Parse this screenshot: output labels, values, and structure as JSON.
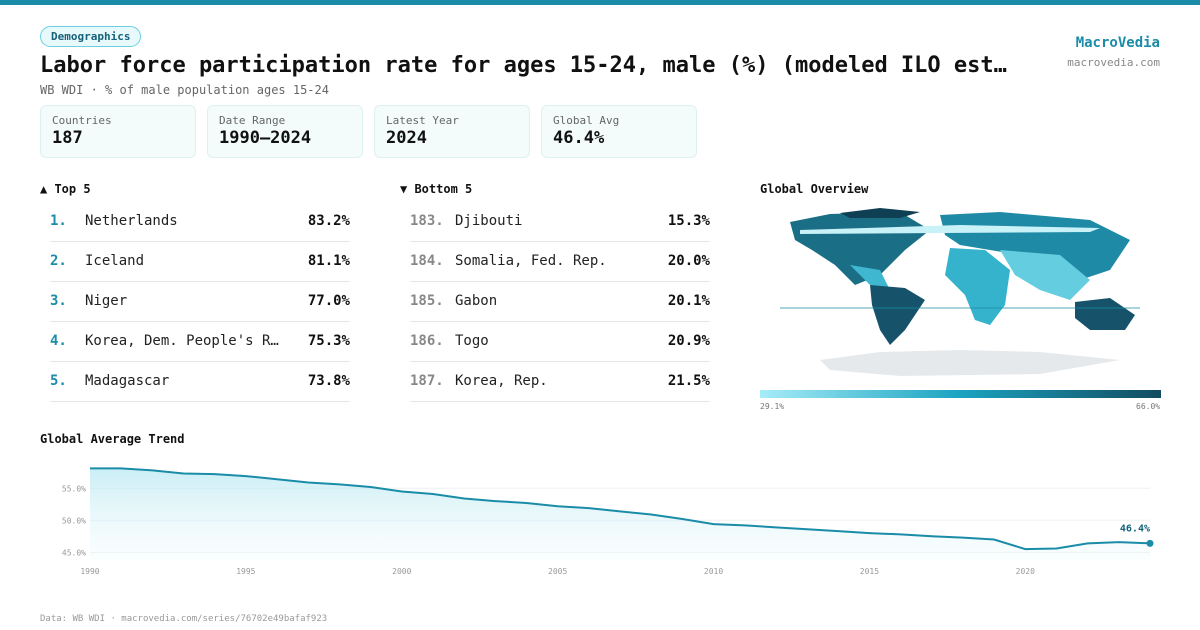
{
  "header": {
    "tag": "Demographics",
    "title": "Labor force participation rate for ages 15-24, male (%) (modeled ILO est…",
    "subtitle": "WB WDI · % of male population ages 15-24",
    "brand": "MacroVedia",
    "site": "macrovedia.com"
  },
  "stats": [
    {
      "label": "Countries",
      "value": "187"
    },
    {
      "label": "Date Range",
      "value": "1990–2024"
    },
    {
      "label": "Latest Year",
      "value": "2024"
    },
    {
      "label": "Global Avg",
      "value": "46.4%"
    }
  ],
  "top": {
    "title": "▲ Top 5",
    "rows": [
      {
        "rank": "1.",
        "name": "Netherlands",
        "value": "83.2%"
      },
      {
        "rank": "2.",
        "name": "Iceland",
        "value": "81.1%"
      },
      {
        "rank": "3.",
        "name": "Niger",
        "value": "77.0%"
      },
      {
        "rank": "4.",
        "name": "Korea, Dem. People's R…",
        "value": "75.3%"
      },
      {
        "rank": "5.",
        "name": "Madagascar",
        "value": "73.8%"
      }
    ]
  },
  "bottom": {
    "title": "▼ Bottom 5",
    "rows": [
      {
        "rank": "183.",
        "name": "Djibouti",
        "value": "15.3%"
      },
      {
        "rank": "184.",
        "name": "Somalia, Fed. Rep.",
        "value": "20.0%"
      },
      {
        "rank": "185.",
        "name": "Gabon",
        "value": "20.1%"
      },
      {
        "rank": "186.",
        "name": "Togo",
        "value": "20.9%"
      },
      {
        "rank": "187.",
        "name": "Korea, Rep.",
        "value": "21.5%"
      }
    ]
  },
  "map": {
    "title": "Global Overview",
    "min_label": "29.1%",
    "max_label": "66.0%"
  },
  "chart_data": {
    "type": "line",
    "title": "Global Average Trend",
    "x": [
      1990,
      1991,
      1992,
      1993,
      1994,
      1995,
      1996,
      1997,
      1998,
      1999,
      2000,
      2001,
      2002,
      2003,
      2004,
      2005,
      2006,
      2007,
      2008,
      2009,
      2010,
      2011,
      2012,
      2013,
      2014,
      2015,
      2016,
      2017,
      2018,
      2019,
      2020,
      2021,
      2022,
      2023,
      2024
    ],
    "series": [
      {
        "color": "#1a8ca8",
        "values": [
          58.1,
          58.1,
          57.8,
          57.3,
          57.2,
          56.9,
          56.4,
          55.9,
          55.6,
          55.2,
          54.5,
          54.1,
          53.4,
          53.0,
          52.7,
          52.2,
          51.9,
          51.4,
          50.9,
          50.2,
          49.4,
          49.2,
          48.9,
          48.6,
          48.3,
          48.0,
          47.8,
          47.5,
          47.3,
          47.0,
          45.5,
          45.6,
          46.4,
          46.6,
          46.4
        ],
        "value_labels": [
          null,
          null,
          null,
          null,
          null,
          null,
          null,
          null,
          null,
          null,
          null,
          null,
          null,
          null,
          null,
          null,
          null,
          null,
          null,
          null,
          null,
          null,
          null,
          null,
          null,
          null,
          null,
          null,
          null,
          null,
          null,
          null,
          null,
          null,
          "46.4%"
        ]
      }
    ],
    "xlim": [
      1990,
      2024
    ],
    "ylim": [
      43.8,
      59.1
    ],
    "xticks": [
      1990,
      1995,
      2000,
      2005,
      2010,
      2015,
      2020
    ],
    "yticks": [
      {
        "value": 45,
        "label": "45.0%"
      },
      {
        "value": 50,
        "label": "50.0%"
      },
      {
        "value": 55,
        "label": "55.0%"
      }
    ]
  },
  "footer": "Data: WB WDI · macrovedia.com/series/76702e49bafaf923"
}
